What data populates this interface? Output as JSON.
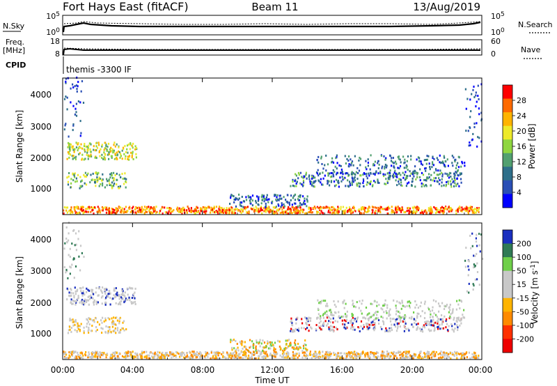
{
  "header": {
    "station": "Fort Hays East (fitACF)",
    "beam": "Beam 11",
    "date": "13/Aug/2019"
  },
  "sky_panel": {
    "left_label": "N.Sky",
    "right_label": "N.Search",
    "left_ticks": [
      "10^5",
      "10^0"
    ],
    "right_ticks": [
      "10^5",
      "10^0"
    ]
  },
  "freq_panel": {
    "left_label_1": "Freq.",
    "left_label_2": "[MHz]",
    "right_label": "Nave",
    "left_ticks": [
      "18",
      "8"
    ],
    "right_ticks": [
      "60",
      "0"
    ]
  },
  "cpid": {
    "label": "CPID",
    "text": "themis -3300 IF"
  },
  "x_axis": {
    "label": "Time UT",
    "ticks": [
      "00:00",
      "04:00",
      "08:00",
      "12:00",
      "16:00",
      "20:00",
      "00:00"
    ]
  },
  "chart_data": [
    {
      "type": "heatmap",
      "name": "power",
      "ylabel": "Slant Range [km]",
      "yticks": [
        "4000",
        "3000",
        "2000",
        "1000"
      ],
      "ylim": [
        180,
        4500
      ],
      "xlim_hours": [
        0,
        24
      ],
      "colorbar": {
        "label": "Power [dB]",
        "ticks": [
          "28",
          "24",
          "20",
          "16",
          "12",
          "8",
          "4"
        ],
        "colors": [
          "#ff0000",
          "#ff6a00",
          "#ffb400",
          "#eeea2a",
          "#8fd640",
          "#52a070",
          "#2e6f8a",
          "#2a4fb5",
          "#0000ff"
        ]
      }
    },
    {
      "type": "heatmap",
      "name": "velocity",
      "ylabel": "Slant Range [km]",
      "yticks": [
        "4000",
        "3000",
        "2000",
        "1000"
      ],
      "ylim": [
        180,
        4500
      ],
      "xlim_hours": [
        0,
        24
      ],
      "colorbar": {
        "label": "Velocity [m s^-1]",
        "ticks": [
          "200",
          "100",
          "50",
          "15",
          "-15",
          "-50",
          "-100",
          "-200"
        ],
        "colors": [
          "#1a2fbf",
          "#2f7a55",
          "#6fcf4a",
          "#c8c8c8",
          "#c8c8c8",
          "#ffb400",
          "#ff8a00",
          "#ff3000",
          "#ee0000"
        ]
      }
    }
  ]
}
